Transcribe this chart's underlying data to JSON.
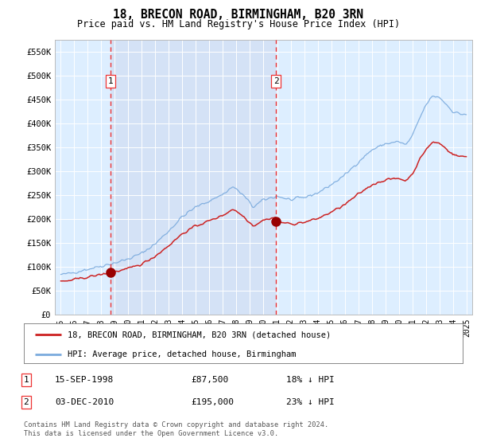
{
  "title": "18, BRECON ROAD, BIRMINGHAM, B20 3RN",
  "subtitle": "Price paid vs. HM Land Registry's House Price Index (HPI)",
  "legend_line1": "18, BRECON ROAD, BIRMINGHAM, B20 3RN (detached house)",
  "legend_line2": "HPI: Average price, detached house, Birmingham",
  "annotation1_date": "15-SEP-1998",
  "annotation1_price": "£87,500",
  "annotation1_hpi": "18% ↓ HPI",
  "annotation2_date": "03-DEC-2010",
  "annotation2_price": "£195,000",
  "annotation2_hpi": "23% ↓ HPI",
  "footer": "Contains HM Land Registry data © Crown copyright and database right 2024.\nThis data is licensed under the Open Government Licence v3.0.",
  "hpi_color": "#7aaadd",
  "price_color": "#cc2222",
  "vline_color": "#ee3333",
  "marker_color": "#990000",
  "plot_bg_color": "#ddeeff",
  "ylim": [
    0,
    575000
  ],
  "yticks": [
    0,
    50000,
    100000,
    150000,
    200000,
    250000,
    300000,
    350000,
    400000,
    450000,
    500000,
    550000
  ],
  "ytick_labels": [
    "£0",
    "£50K",
    "£100K",
    "£150K",
    "£200K",
    "£250K",
    "£300K",
    "£350K",
    "£400K",
    "£450K",
    "£500K",
    "£550K"
  ],
  "sale1_x": 1998.71,
  "sale1_y": 87500,
  "sale2_x": 2010.92,
  "sale2_y": 195000,
  "xlim": [
    1994.6,
    2025.4
  ],
  "xticks": [
    1995,
    1996,
    1997,
    1998,
    1999,
    2000,
    2001,
    2002,
    2003,
    2004,
    2005,
    2006,
    2007,
    2008,
    2009,
    2010,
    2011,
    2012,
    2013,
    2014,
    2015,
    2016,
    2017,
    2018,
    2019,
    2020,
    2021,
    2022,
    2023,
    2024,
    2025
  ]
}
